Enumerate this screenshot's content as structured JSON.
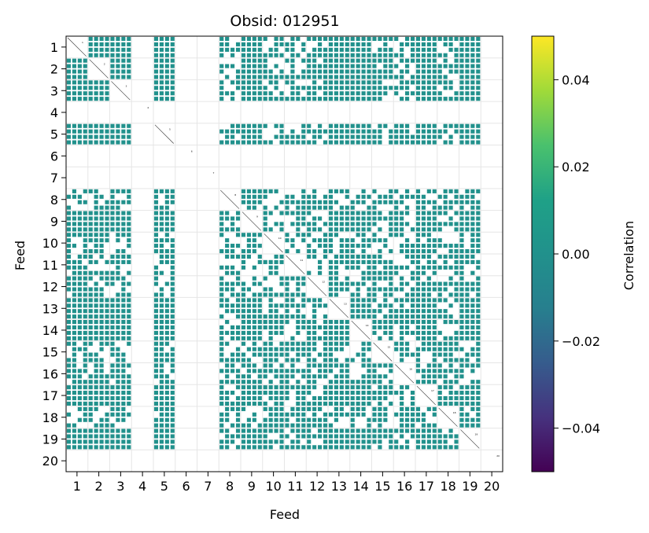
{
  "chart_data": {
    "type": "heatmap",
    "title": "Obsid: 012951",
    "xlabel": "Feed",
    "ylabel": "Feed",
    "x_ticks": [
      "1",
      "2",
      "3",
      "4",
      "5",
      "6",
      "7",
      "8",
      "9",
      "10",
      "11",
      "12",
      "13",
      "14",
      "15",
      "16",
      "17",
      "18",
      "19",
      "20"
    ],
    "y_ticks": [
      "1",
      "2",
      "3",
      "4",
      "5",
      "6",
      "7",
      "8",
      "9",
      "10",
      "11",
      "12",
      "13",
      "14",
      "15",
      "16",
      "17",
      "18",
      "19",
      "20"
    ],
    "feeds": 20,
    "bands_per_feed": 4,
    "cell_value": 0.0,
    "cell_color": "#21918c",
    "grid": true,
    "colorbar": {
      "label": "Correlation",
      "colormap": "viridis",
      "range": [
        -0.05,
        0.05
      ],
      "ticks": [
        "0.04",
        "0.02",
        "0.00",
        "−0.02",
        "−0.04"
      ],
      "tick_values": [
        0.04,
        0.02,
        0.0,
        -0.02,
        -0.04
      ],
      "top_color": "#fde725",
      "bottom_color": "#440154"
    },
    "empty_feeds": [
      4,
      6,
      7,
      20
    ],
    "partial_feeds": [
      8,
      10,
      11,
      12,
      15,
      16,
      18
    ],
    "diagonal_labels": [
      "1",
      "2",
      "3",
      "4",
      "5",
      "6",
      "7",
      "8",
      "9",
      "10",
      "11",
      "12",
      "13",
      "14",
      "15",
      "16",
      "17",
      "18",
      "19",
      "20"
    ]
  }
}
